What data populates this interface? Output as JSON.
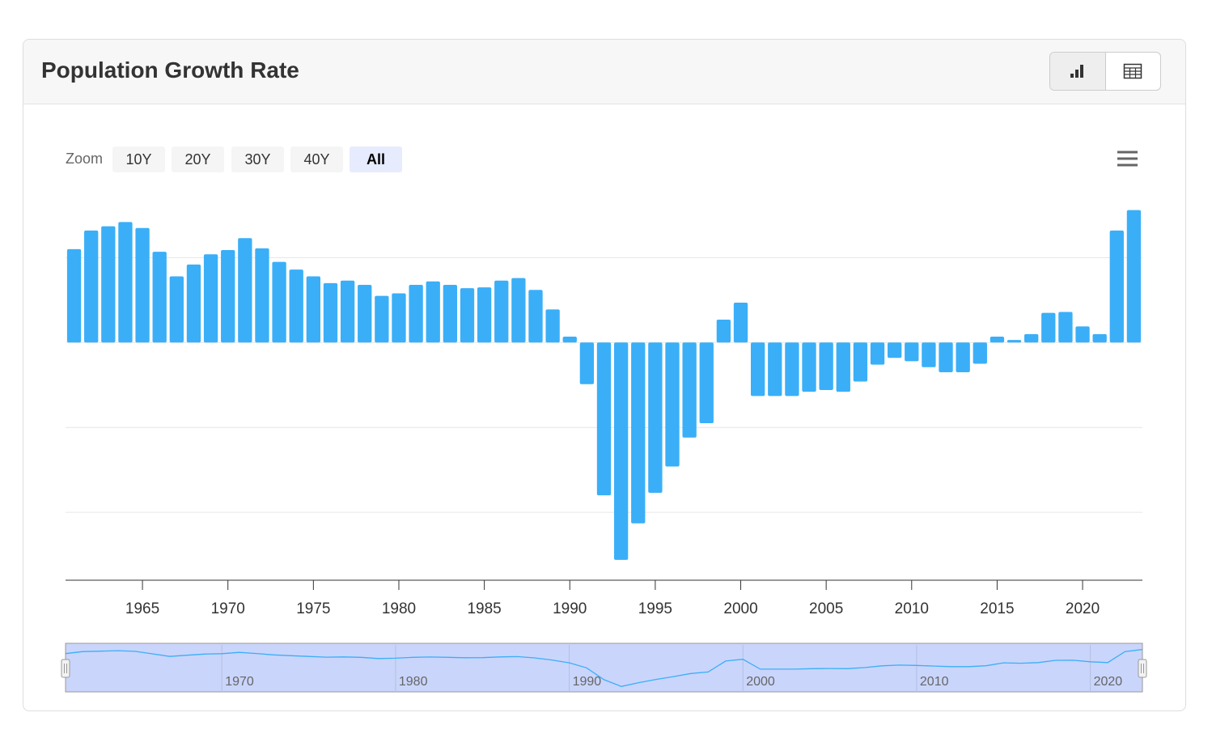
{
  "header": {
    "title": "Population Growth Rate"
  },
  "zoom": {
    "label": "Zoom",
    "buttons": [
      "10Y",
      "20Y",
      "30Y",
      "40Y",
      "All"
    ],
    "active": 4
  },
  "chart_data": {
    "type": "bar",
    "color": "#3aaff8",
    "x": [
      1961,
      1962,
      1963,
      1964,
      1965,
      1966,
      1967,
      1968,
      1969,
      1970,
      1971,
      1972,
      1973,
      1974,
      1975,
      1976,
      1977,
      1978,
      1979,
      1980,
      1981,
      1982,
      1983,
      1984,
      1985,
      1986,
      1987,
      1988,
      1989,
      1990,
      1991,
      1992,
      1993,
      1994,
      1995,
      1996,
      1997,
      1998,
      1999,
      2000,
      2001,
      2002,
      2003,
      2004,
      2005,
      2006,
      2007,
      2008,
      2009,
      2010,
      2011,
      2012,
      2013,
      2014,
      2015,
      2016,
      2017,
      2018,
      2019,
      2020,
      2021,
      2022,
      2023
    ],
    "values": [
      1.1,
      1.32,
      1.37,
      1.42,
      1.35,
      1.07,
      0.78,
      0.92,
      1.04,
      1.09,
      1.23,
      1.11,
      0.95,
      0.86,
      0.78,
      0.7,
      0.73,
      0.68,
      0.55,
      0.58,
      0.68,
      0.72,
      0.68,
      0.64,
      0.65,
      0.73,
      0.76,
      0.62,
      0.39,
      0.07,
      -0.49,
      -1.8,
      -2.56,
      -2.13,
      -1.77,
      -1.46,
      -1.12,
      -0.95,
      0.27,
      0.47,
      -0.63,
      -0.63,
      -0.63,
      -0.58,
      -0.56,
      -0.58,
      -0.46,
      -0.26,
      -0.18,
      -0.22,
      -0.29,
      -0.35,
      -0.35,
      -0.25,
      0.07,
      0.03,
      0.1,
      0.35,
      0.36,
      0.19,
      0.1,
      1.32,
      1.56
    ],
    "xlim": [
      1960.5,
      2023.5
    ],
    "xticks": [
      1965,
      1970,
      1975,
      1980,
      1985,
      1990,
      1995,
      2000,
      2005,
      2010,
      2015,
      2020
    ],
    "ylim": [
      -2.8,
      1.7
    ],
    "yticks": [
      -2,
      -1,
      0,
      1
    ],
    "grid": true,
    "navigator": {
      "xlim": [
        1961,
        2023
      ],
      "xticks": [
        1970,
        1980,
        1990,
        2000,
        2010,
        2020
      ]
    }
  }
}
